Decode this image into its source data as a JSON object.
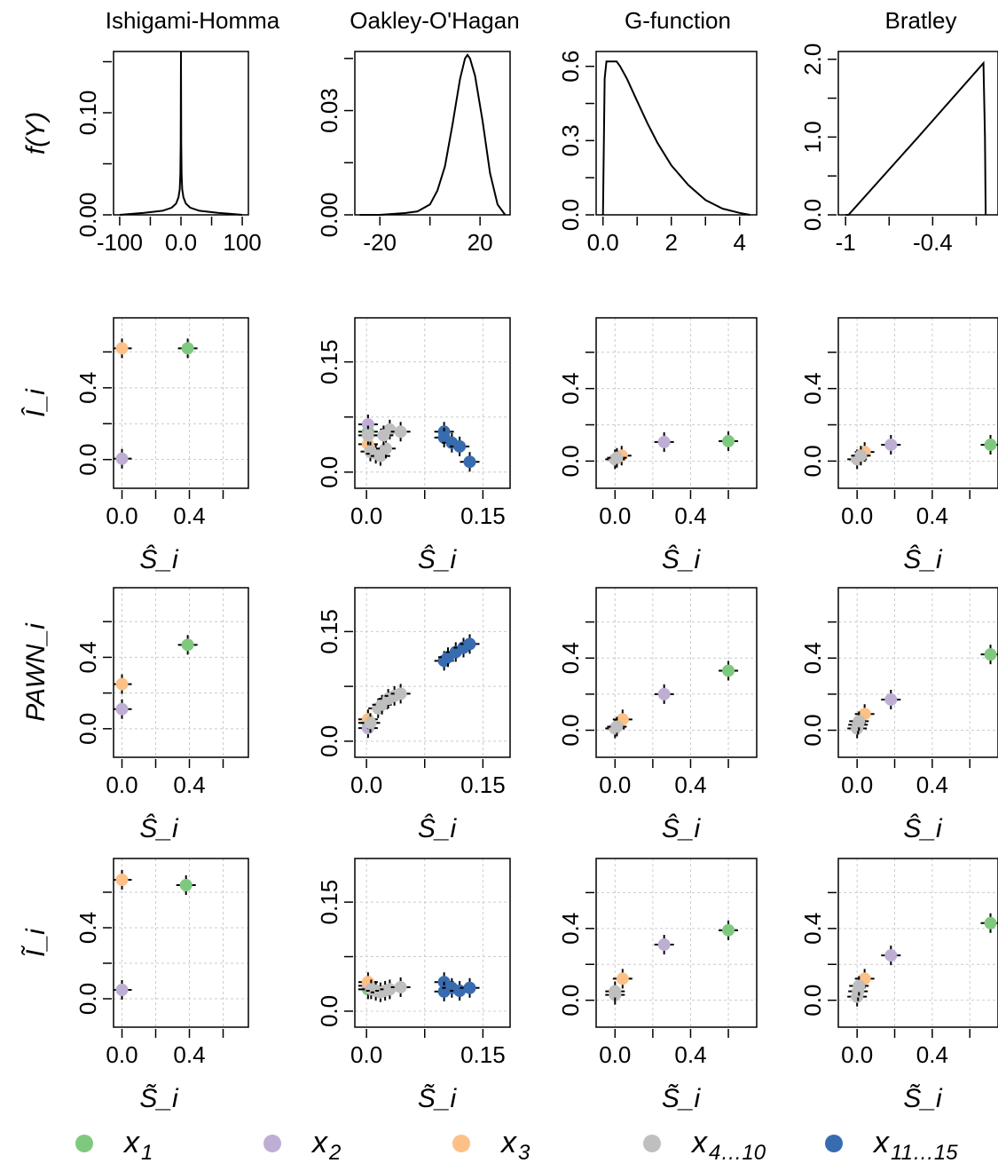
{
  "column_titles": [
    "Ishigami-Homma",
    "Oakley-O'Hagan",
    "G-function",
    "Bratley"
  ],
  "row_ylabels": [
    "f(Y)",
    "Î_i",
    "PAWN_i",
    "Ĩ_i"
  ],
  "row_xlabels": [
    "",
    "Ŝ_i",
    "Ŝ_i",
    "S̃_i"
  ],
  "colors": {
    "x1": "#7fc97f",
    "x2": "#beaed4",
    "x3": "#fdc086",
    "x4_10": "#bfbfbf",
    "x11_15": "#386cb0"
  },
  "legend": [
    {
      "base": "x",
      "sub": "1",
      "color": "#7fc97f"
    },
    {
      "base": "x",
      "sub": "2",
      "color": "#beaed4"
    },
    {
      "base": "x",
      "sub": "3",
      "color": "#fdc086"
    },
    {
      "base": "x",
      "sub": "4…10",
      "color": "#bfbfbf"
    },
    {
      "base": "x",
      "sub": "11…15",
      "color": "#386cb0"
    }
  ],
  "chart_data": [
    {
      "type": "line",
      "model": "Ishigami-Homma",
      "ylabel": "f(Y)",
      "xlim": [
        -110,
        110
      ],
      "ylim": [
        0,
        0.16
      ],
      "xticks": [
        -100,
        0,
        100
      ],
      "yticks": [
        0.0,
        0.1
      ],
      "ytick_labels": [
        "0.00",
        "0.10"
      ],
      "x": [
        -100,
        -60,
        -30,
        -15,
        -8,
        -4,
        -2,
        -1,
        -0.5,
        0,
        0.5,
        1,
        2,
        4,
        8,
        15,
        30,
        60,
        100
      ],
      "y": [
        0.0,
        0.002,
        0.004,
        0.007,
        0.011,
        0.017,
        0.025,
        0.04,
        0.07,
        0.16,
        0.07,
        0.04,
        0.025,
        0.017,
        0.011,
        0.007,
        0.004,
        0.002,
        0.0
      ]
    },
    {
      "type": "line",
      "model": "Oakley-O'Hagan",
      "ylabel": "f(Y)",
      "xlim": [
        -30,
        32
      ],
      "ylim": [
        0,
        0.047
      ],
      "xticks": [
        -20,
        20
      ],
      "yticks": [
        0.0,
        0.03
      ],
      "ytick_labels": [
        "0.00",
        "0.03"
      ],
      "x": [
        -28,
        -20,
        -10,
        -5,
        0,
        3,
        6,
        9,
        12,
        14,
        15,
        16,
        18,
        21,
        24,
        27,
        30
      ],
      "y": [
        0.0,
        0.0,
        0.0005,
        0.001,
        0.003,
        0.007,
        0.014,
        0.026,
        0.039,
        0.045,
        0.046,
        0.045,
        0.04,
        0.027,
        0.012,
        0.003,
        0.0
      ]
    },
    {
      "type": "line",
      "model": "G-function",
      "ylabel": "f(Y)",
      "xlim": [
        -0.2,
        4.5
      ],
      "ylim": [
        0,
        0.66
      ],
      "xticks": [
        0,
        2,
        4
      ],
      "yticks": [
        0.0,
        0.3,
        0.6
      ],
      "ytick_labels": [
        "0.0",
        "0.3",
        "0.6"
      ],
      "x": [
        0.0,
        0.05,
        0.1,
        0.2,
        0.4,
        0.5,
        0.7,
        1.0,
        1.3,
        1.6,
        2.0,
        2.5,
        3.0,
        3.5,
        4.0,
        4.3
      ],
      "y": [
        0.0,
        0.55,
        0.62,
        0.62,
        0.62,
        0.6,
        0.55,
        0.46,
        0.37,
        0.29,
        0.2,
        0.12,
        0.06,
        0.025,
        0.008,
        0.0
      ]
    },
    {
      "type": "line",
      "model": "Bratley",
      "ylabel": "f(Y)",
      "xlim": [
        -1.05,
        0.05
      ],
      "ylim": [
        0,
        2.1
      ],
      "xticks": [
        -1.0,
        -0.4
      ],
      "yticks": [
        0.0,
        1.0,
        2.0
      ],
      "ytick_labels": [
        "0.0",
        "1.0",
        "2.0"
      ],
      "x": [
        -1.0,
        -0.98,
        -0.5,
        -0.05,
        -0.04,
        -0.035
      ],
      "y": [
        0.0,
        0.0,
        1.0,
        1.95,
        1.0,
        0.0
      ]
    },
    {
      "type": "scatter",
      "model": "Ishigami-Homma",
      "xlabel": "Ŝ_i",
      "ylabel": "Î_i",
      "xlim": [
        -0.05,
        0.75
      ],
      "ylim": [
        -0.16,
        0.79
      ],
      "xticks": [
        0.0,
        0.4
      ],
      "yticks": [
        0.0,
        0.4
      ],
      "grid": true,
      "points": [
        {
          "s": "x1",
          "x": 0.39,
          "y": 0.62
        },
        {
          "s": "x2",
          "x": 0.0,
          "y": 0.005
        },
        {
          "s": "x3",
          "x": 0.0,
          "y": 0.62
        }
      ]
    },
    {
      "type": "scatter",
      "model": "Oakley-O'Hagan",
      "xlabel": "Ŝ_i",
      "ylabel": "Î_i",
      "xlim": [
        -0.015,
        0.185
      ],
      "ylim": [
        -0.022,
        0.21
      ],
      "xticks": [
        0.0,
        0.15
      ],
      "yticks": [
        0.0,
        0.15
      ],
      "grid": true,
      "points": [
        {
          "s": "x1",
          "x": 0.002,
          "y": 0.055
        },
        {
          "s": "x2",
          "x": 0.002,
          "y": 0.065
        },
        {
          "s": "x3",
          "x": 0.002,
          "y": 0.038
        },
        {
          "s": "x4_10",
          "x": 0.002,
          "y": 0.05
        },
        {
          "s": "x4_10",
          "x": 0.005,
          "y": 0.028
        },
        {
          "s": "x4_10",
          "x": 0.012,
          "y": 0.025
        },
        {
          "s": "x4_10",
          "x": 0.018,
          "y": 0.022
        },
        {
          "s": "x4_10",
          "x": 0.025,
          "y": 0.032
        },
        {
          "s": "x4_10",
          "x": 0.03,
          "y": 0.058
        },
        {
          "s": "x4_10",
          "x": 0.044,
          "y": 0.055
        },
        {
          "s": "x4_10",
          "x": 0.022,
          "y": 0.05
        },
        {
          "s": "x11_15",
          "x": 0.1,
          "y": 0.055
        },
        {
          "s": "x11_15",
          "x": 0.1,
          "y": 0.047
        },
        {
          "s": "x11_15",
          "x": 0.11,
          "y": 0.04
        },
        {
          "s": "x11_15",
          "x": 0.12,
          "y": 0.035
        },
        {
          "s": "x11_15",
          "x": 0.133,
          "y": 0.014
        }
      ]
    },
    {
      "type": "scatter",
      "model": "G-function",
      "xlabel": "Ŝ_i",
      "ylabel": "Î_i",
      "xlim": [
        -0.1,
        0.75
      ],
      "ylim": [
        -0.15,
        0.79
      ],
      "xticks": [
        0.0,
        0.4
      ],
      "yticks": [
        0.0,
        0.4
      ],
      "grid": true,
      "points": [
        {
          "s": "x1",
          "x": 0.6,
          "y": 0.11
        },
        {
          "s": "x2",
          "x": 0.26,
          "y": 0.105
        },
        {
          "s": "x3",
          "x": 0.035,
          "y": 0.03
        },
        {
          "s": "x4_10",
          "x": 0.0,
          "y": 0.01
        },
        {
          "s": "x4_10",
          "x": 0.01,
          "y": 0.018
        }
      ]
    },
    {
      "type": "scatter",
      "model": "Bratley",
      "xlabel": "Ŝ_i",
      "ylabel": "Î_i",
      "xlim": [
        -0.1,
        0.75
      ],
      "ylim": [
        -0.15,
        0.79
      ],
      "xticks": [
        0.0,
        0.4
      ],
      "yticks": [
        0.0,
        0.4
      ],
      "grid": true,
      "points": [
        {
          "s": "x1",
          "x": 0.71,
          "y": 0.09
        },
        {
          "s": "x2",
          "x": 0.18,
          "y": 0.09
        },
        {
          "s": "x3",
          "x": 0.04,
          "y": 0.05
        },
        {
          "s": "x4_10",
          "x": 0.0,
          "y": 0.01
        },
        {
          "s": "x4_10",
          "x": 0.02,
          "y": 0.03
        }
      ]
    },
    {
      "type": "scatter",
      "model": "Ishigami-Homma",
      "xlabel": "Ŝ_i",
      "ylabel": "PAWN_i",
      "xlim": [
        -0.05,
        0.75
      ],
      "ylim": [
        -0.16,
        0.79
      ],
      "xticks": [
        0.0,
        0.4
      ],
      "yticks": [
        0.0,
        0.4
      ],
      "grid": true,
      "points": [
        {
          "s": "x1",
          "x": 0.39,
          "y": 0.47
        },
        {
          "s": "x2",
          "x": 0.0,
          "y": 0.11
        },
        {
          "s": "x3",
          "x": 0.0,
          "y": 0.25
        }
      ]
    },
    {
      "type": "scatter",
      "model": "Oakley-O'Hagan",
      "xlabel": "Ŝ_i",
      "ylabel": "PAWN_i",
      "xlim": [
        -0.015,
        0.185
      ],
      "ylim": [
        -0.022,
        0.21
      ],
      "xticks": [
        0.0,
        0.15
      ],
      "yticks": [
        0.0,
        0.15
      ],
      "grid": true,
      "points": [
        {
          "s": "x1",
          "x": 0.002,
          "y": 0.025
        },
        {
          "s": "x2",
          "x": 0.002,
          "y": 0.018
        },
        {
          "s": "x3",
          "x": 0.002,
          "y": 0.03
        },
        {
          "s": "x4_10",
          "x": 0.005,
          "y": 0.025
        },
        {
          "s": "x4_10",
          "x": 0.015,
          "y": 0.045
        },
        {
          "s": "x4_10",
          "x": 0.02,
          "y": 0.05
        },
        {
          "s": "x4_10",
          "x": 0.028,
          "y": 0.058
        },
        {
          "s": "x4_10",
          "x": 0.036,
          "y": 0.062
        },
        {
          "s": "x4_10",
          "x": 0.044,
          "y": 0.065
        },
        {
          "s": "x11_15",
          "x": 0.1,
          "y": 0.11
        },
        {
          "s": "x11_15",
          "x": 0.105,
          "y": 0.115
        },
        {
          "s": "x11_15",
          "x": 0.115,
          "y": 0.122
        },
        {
          "s": "x11_15",
          "x": 0.125,
          "y": 0.128
        },
        {
          "s": "x11_15",
          "x": 0.133,
          "y": 0.133
        }
      ]
    },
    {
      "type": "scatter",
      "model": "G-function",
      "xlabel": "Ŝ_i",
      "ylabel": "PAWN_i",
      "xlim": [
        -0.1,
        0.75
      ],
      "ylim": [
        -0.15,
        0.79
      ],
      "xticks": [
        0.0,
        0.4
      ],
      "yticks": [
        0.0,
        0.4
      ],
      "grid": true,
      "points": [
        {
          "s": "x1",
          "x": 0.6,
          "y": 0.33
        },
        {
          "s": "x2",
          "x": 0.26,
          "y": 0.2
        },
        {
          "s": "x3",
          "x": 0.04,
          "y": 0.06
        },
        {
          "s": "x4_10",
          "x": 0.0,
          "y": 0.01
        },
        {
          "s": "x4_10",
          "x": 0.01,
          "y": 0.02
        }
      ]
    },
    {
      "type": "scatter",
      "model": "Bratley",
      "xlabel": "Ŝ_i",
      "ylabel": "PAWN_i",
      "xlim": [
        -0.1,
        0.75
      ],
      "ylim": [
        -0.15,
        0.79
      ],
      "xticks": [
        0.0,
        0.4
      ],
      "yticks": [
        0.0,
        0.4
      ],
      "grid": true,
      "points": [
        {
          "s": "x1",
          "x": 0.71,
          "y": 0.42
        },
        {
          "s": "x2",
          "x": 0.18,
          "y": 0.17
        },
        {
          "s": "x3",
          "x": 0.04,
          "y": 0.09
        },
        {
          "s": "x4_10",
          "x": 0.0,
          "y": 0.01
        },
        {
          "s": "x4_10",
          "x": 0.005,
          "y": 0.03
        },
        {
          "s": "x4_10",
          "x": 0.01,
          "y": 0.05
        }
      ]
    },
    {
      "type": "scatter",
      "model": "Ishigami-Homma",
      "xlabel": "S̃_i",
      "ylabel": "Ĩ_i",
      "xlim": [
        -0.05,
        0.75
      ],
      "ylim": [
        -0.16,
        0.79
      ],
      "xticks": [
        0.0,
        0.4
      ],
      "yticks": [
        0.0,
        0.4
      ],
      "grid": true,
      "points": [
        {
          "s": "x1",
          "x": 0.38,
          "y": 0.64
        },
        {
          "s": "x2",
          "x": 0.0,
          "y": 0.05
        },
        {
          "s": "x3",
          "x": 0.0,
          "y": 0.67
        }
      ]
    },
    {
      "type": "scatter",
      "model": "Oakley-O'Hagan",
      "xlabel": "S̃_i",
      "ylabel": "Ĩ_i",
      "xlim": [
        -0.015,
        0.185
      ],
      "ylim": [
        -0.022,
        0.21
      ],
      "xticks": [
        0.0,
        0.15
      ],
      "yticks": [
        0.0,
        0.15
      ],
      "grid": true,
      "points": [
        {
          "s": "x1",
          "x": 0.002,
          "y": 0.03
        },
        {
          "s": "x2",
          "x": 0.002,
          "y": 0.035
        },
        {
          "s": "x3",
          "x": 0.002,
          "y": 0.04
        },
        {
          "s": "x4_10",
          "x": 0.006,
          "y": 0.03
        },
        {
          "s": "x4_10",
          "x": 0.012,
          "y": 0.028
        },
        {
          "s": "x4_10",
          "x": 0.018,
          "y": 0.026
        },
        {
          "s": "x4_10",
          "x": 0.024,
          "y": 0.028
        },
        {
          "s": "x4_10",
          "x": 0.03,
          "y": 0.03
        },
        {
          "s": "x4_10",
          "x": 0.044,
          "y": 0.033
        },
        {
          "s": "x11_15",
          "x": 0.1,
          "y": 0.04
        },
        {
          "s": "x11_15",
          "x": 0.1,
          "y": 0.027
        },
        {
          "s": "x11_15",
          "x": 0.11,
          "y": 0.032
        },
        {
          "s": "x11_15",
          "x": 0.12,
          "y": 0.028
        },
        {
          "s": "x11_15",
          "x": 0.133,
          "y": 0.032
        }
      ]
    },
    {
      "type": "scatter",
      "model": "G-function",
      "xlabel": "S̃_i",
      "ylabel": "Ĩ_i",
      "xlim": [
        -0.1,
        0.75
      ],
      "ylim": [
        -0.15,
        0.79
      ],
      "xticks": [
        0.0,
        0.4
      ],
      "yticks": [
        0.0,
        0.4
      ],
      "grid": true,
      "points": [
        {
          "s": "x1",
          "x": 0.6,
          "y": 0.39
        },
        {
          "s": "x2",
          "x": 0.26,
          "y": 0.31
        },
        {
          "s": "x3",
          "x": 0.04,
          "y": 0.12
        },
        {
          "s": "x4_10",
          "x": 0.0,
          "y": 0.03
        },
        {
          "s": "x4_10",
          "x": 0.0,
          "y": 0.05
        }
      ]
    },
    {
      "type": "scatter",
      "model": "Bratley",
      "xlabel": "S̃_i",
      "ylabel": "Ĩ_i",
      "xlim": [
        -0.1,
        0.75
      ],
      "ylim": [
        -0.15,
        0.79
      ],
      "xticks": [
        0.0,
        0.4
      ],
      "yticks": [
        0.0,
        0.4
      ],
      "grid": true,
      "points": [
        {
          "s": "x1",
          "x": 0.71,
          "y": 0.43
        },
        {
          "s": "x2",
          "x": 0.18,
          "y": 0.25
        },
        {
          "s": "x3",
          "x": 0.04,
          "y": 0.12
        },
        {
          "s": "x4_10",
          "x": 0.0,
          "y": 0.02
        },
        {
          "s": "x4_10",
          "x": 0.005,
          "y": 0.05
        },
        {
          "s": "x4_10",
          "x": 0.01,
          "y": 0.08
        }
      ]
    }
  ]
}
